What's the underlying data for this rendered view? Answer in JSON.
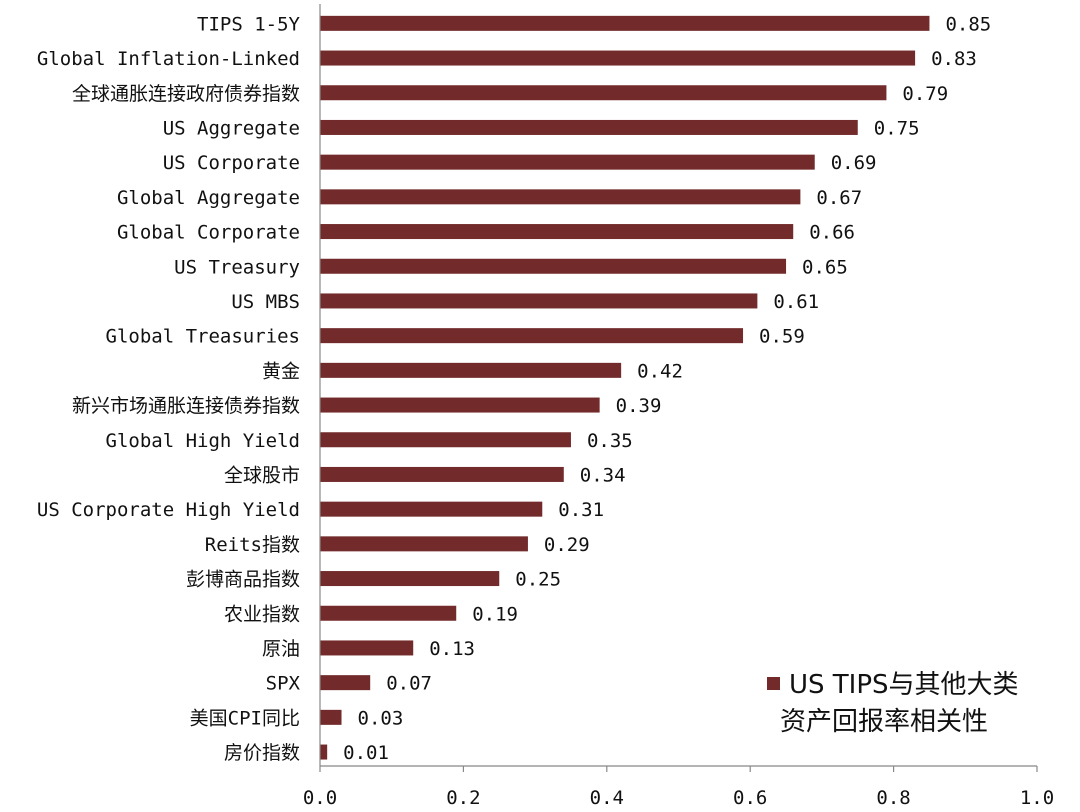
{
  "chart_data": {
    "type": "bar",
    "orientation": "horizontal",
    "categories": [
      "TIPS 1-5Y",
      "Global Inflation-Linked",
      "全球通胀连接政府债券指数",
      "US Aggregate",
      "US Corporate",
      "Global Aggregate",
      "Global Corporate",
      "US Treasury",
      "US MBS",
      "Global Treasuries",
      "黄金",
      "新兴市场通胀连接债券指数",
      "Global High Yield",
      "全球股市",
      "US Corporate High Yield",
      "Reits指数",
      "彭博商品指数",
      "农业指数",
      "原油",
      "SPX",
      "美国CPI同比",
      "房价指数"
    ],
    "series": [
      {
        "name": "US TIPS与其他大类资产回报率相关性",
        "values": [
          0.85,
          0.83,
          0.79,
          0.75,
          0.69,
          0.67,
          0.66,
          0.65,
          0.61,
          0.59,
          0.42,
          0.39,
          0.35,
          0.34,
          0.31,
          0.29,
          0.25,
          0.19,
          0.13,
          0.07,
          0.03,
          0.01
        ],
        "value_labels": [
          "0.85",
          "0.83",
          "0.79",
          "0.75",
          "0.69",
          "0.67",
          "0.66",
          "0.65",
          "0.61",
          "0.59",
          "0.42",
          "0.39",
          "0.35",
          "0.34",
          "0.31",
          "0.29",
          "0.25",
          "0.19",
          "0.13",
          "0.07",
          "0.03",
          "0.01"
        ],
        "color": "#722a2a"
      }
    ],
    "xlim": [
      0,
      1.0
    ],
    "x_ticks": [
      0,
      0.2,
      0.4,
      0.6,
      0.8,
      1.0
    ],
    "x_tick_labels": [
      "0.0",
      "0.2",
      "0.4",
      "0.6",
      "0.8",
      "1.0"
    ],
    "grid": false,
    "legend": {
      "position": "bottom-right",
      "lines": [
        "US TIPS与其他大类",
        "资产回报率相关性"
      ]
    }
  }
}
